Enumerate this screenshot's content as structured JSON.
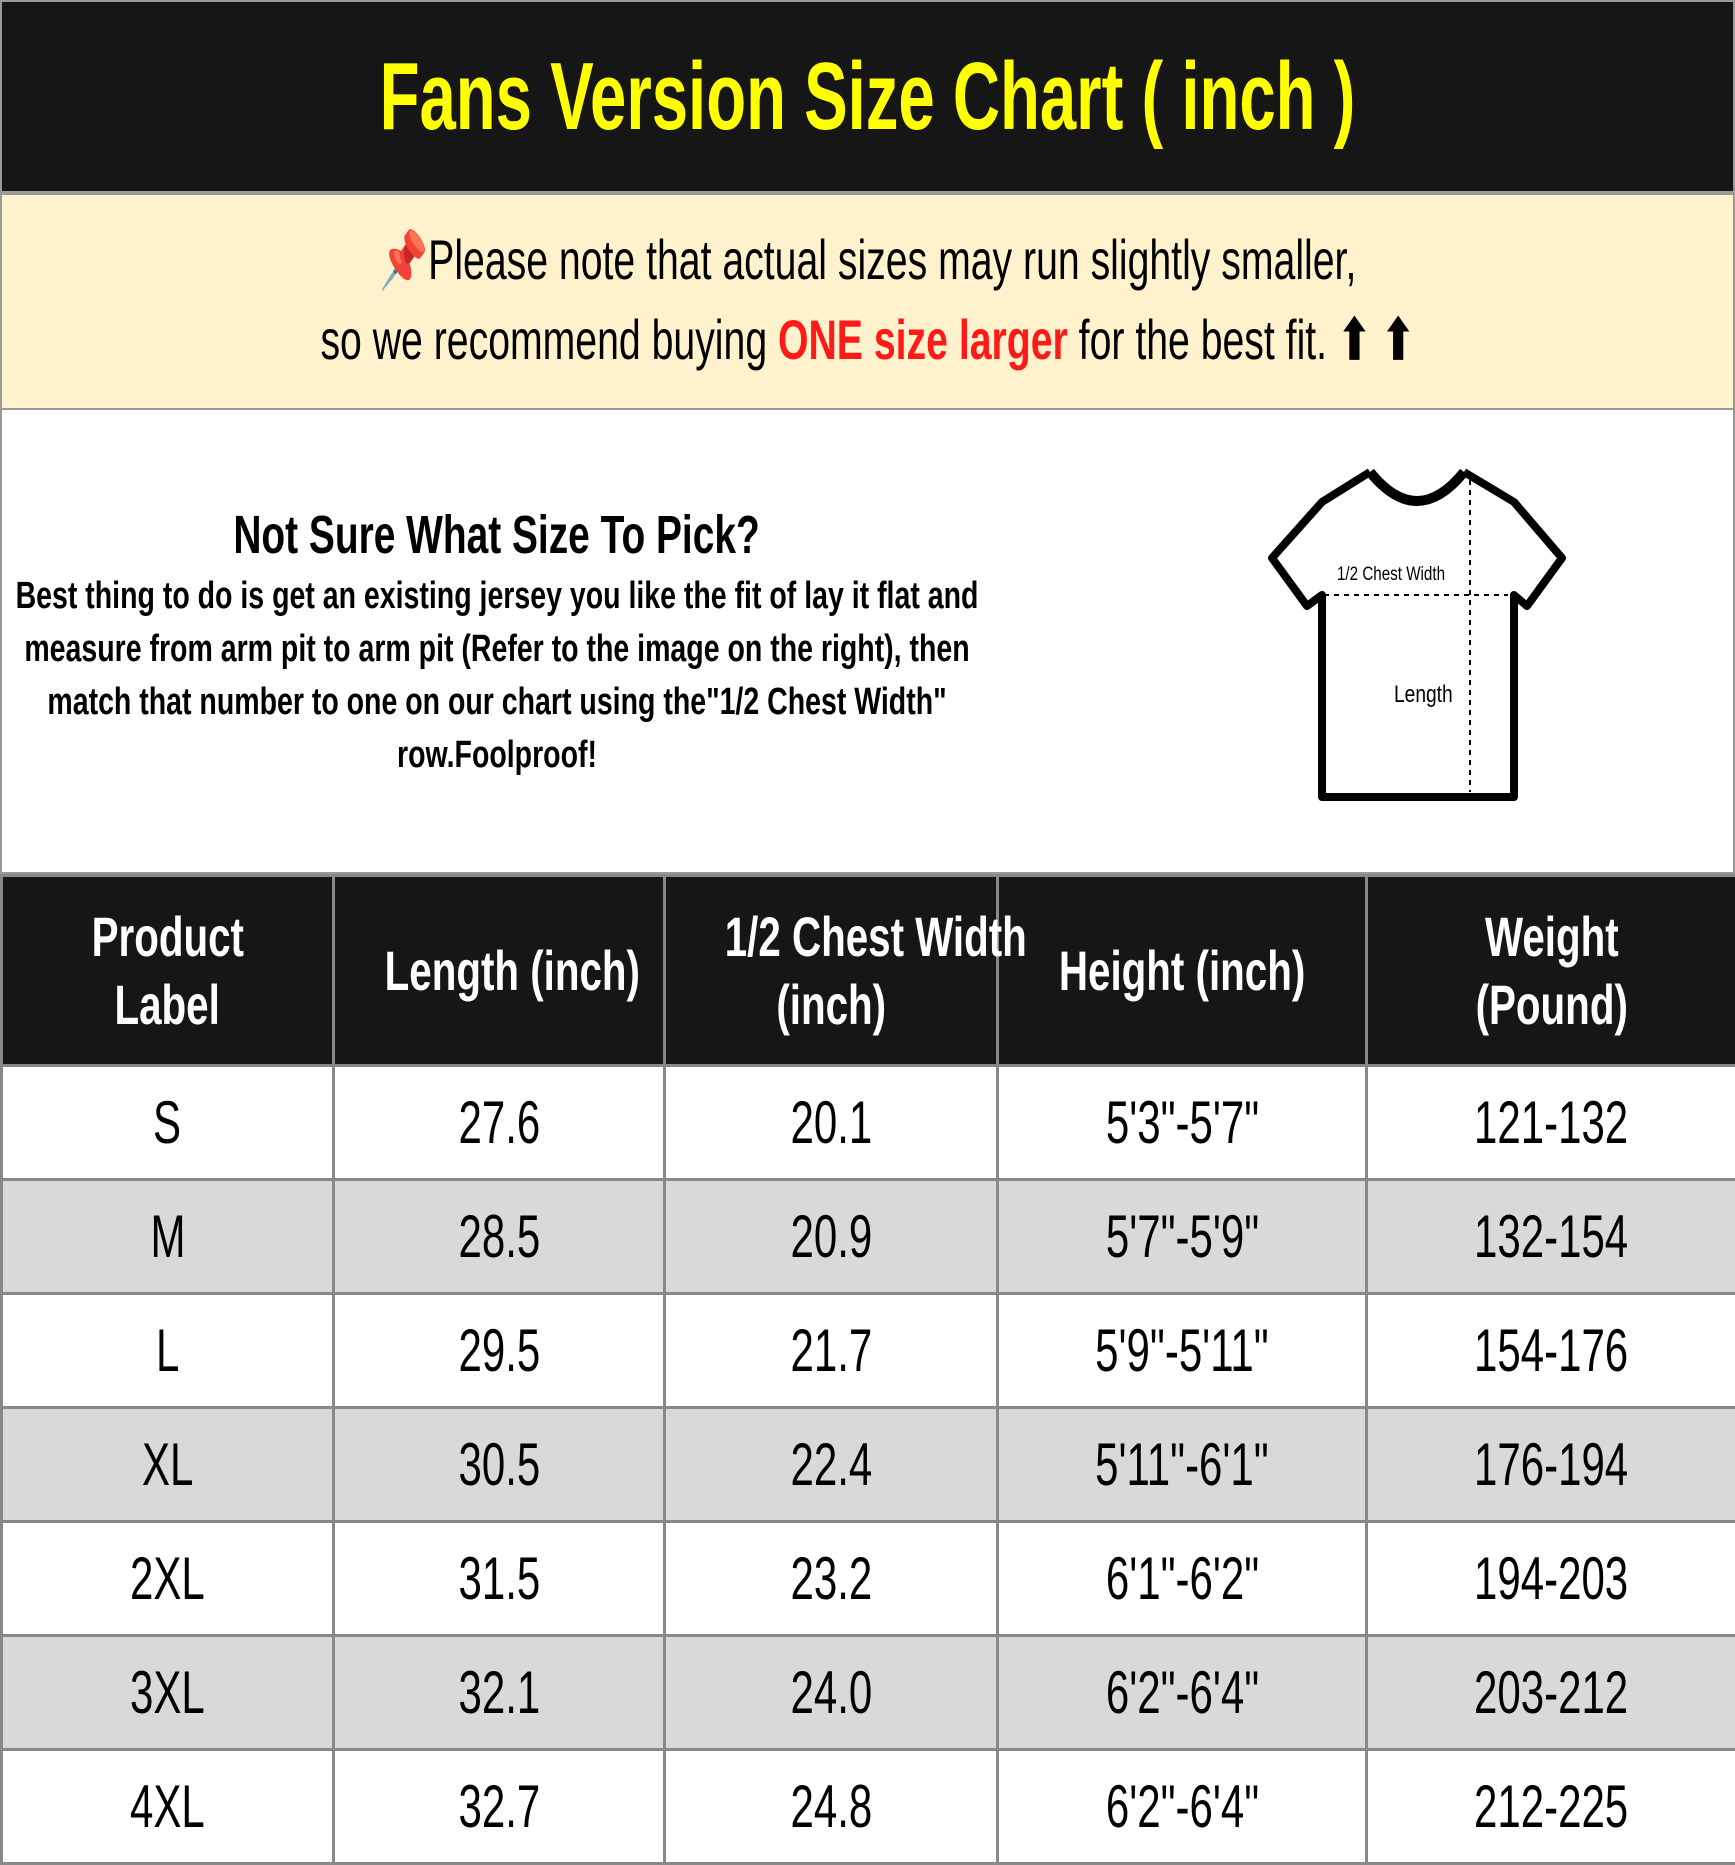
{
  "title": "Fans Version Size Chart ( inch )",
  "note": {
    "icon": "pushpin-icon",
    "line1": "Please note that actual sizes may run slightly smaller,",
    "line2_pre": "so we recommend buying ",
    "line2_highlight": "ONE size larger",
    "line2_post": " for the best fit. ",
    "arrows": "⬆ ⬆",
    "highlight_color": "#ff1a1a"
  },
  "help": {
    "heading": "Not Sure What Size To Pick?",
    "body": "Best thing to do is get an existing jersey you like the fit of lay it flat and measure from arm pit to arm pit (Refer to the image on the right), then match that number to one on our chart using the\"1/2 Chest Width\" row.Foolproof!"
  },
  "diagram": {
    "chest_label": "1/2 Chest Width",
    "length_label": "Length"
  },
  "table": {
    "headers": [
      [
        "Product",
        "Label"
      ],
      [
        "Length (inch)"
      ],
      [
        "1/2 Chest Width",
        "(inch)"
      ],
      [
        "Height (inch)"
      ],
      [
        "Weight",
        "(Pound)"
      ]
    ],
    "rows": [
      [
        "S",
        "27.6",
        "20.1",
        "5'3\"-5'7\"",
        "121-132"
      ],
      [
        "M",
        "28.5",
        "20.9",
        "5'7\"-5'9\"",
        "132-154"
      ],
      [
        "L",
        "29.5",
        "21.7",
        "5'9\"-5'11\"",
        "154-176"
      ],
      [
        "XL",
        "30.5",
        "22.4",
        "5'11\"-6'1\"",
        "176-194"
      ],
      [
        "2XL",
        "31.5",
        "23.2",
        "6'1\"-6'2\"",
        "194-203"
      ],
      [
        "3XL",
        "32.1",
        "24.0",
        "6'2\"-6'4\"",
        "203-212"
      ],
      [
        "4XL",
        "32.7",
        "24.8",
        "6'2\"-6'4\"",
        "212-225"
      ]
    ]
  }
}
